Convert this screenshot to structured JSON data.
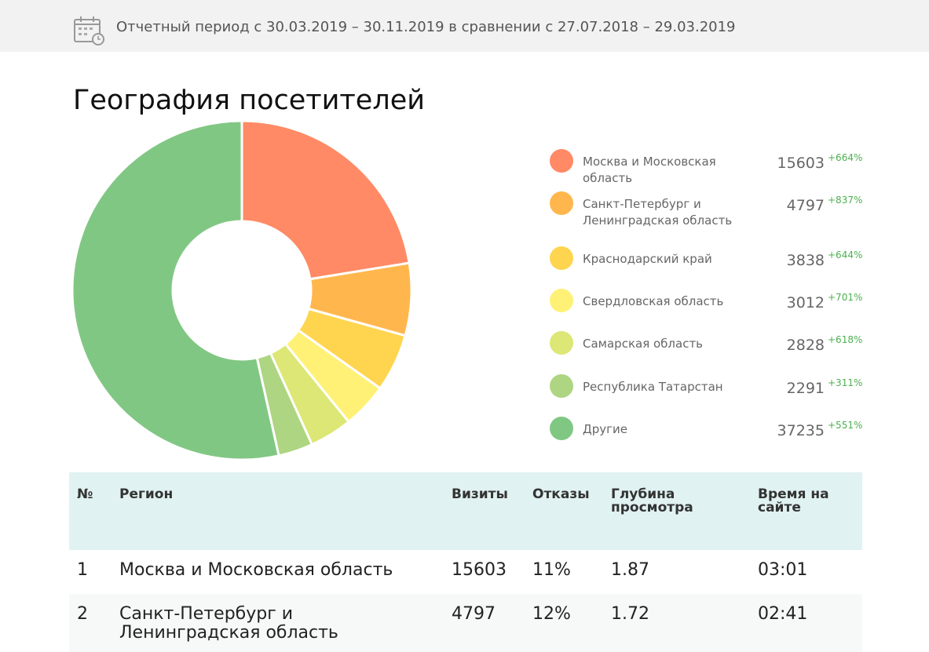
{
  "header": {
    "period": "Отчетный период с 30.03.2019 – 30.11.2019 в сравнении с 27.07.2018 – 29.03.2019"
  },
  "title": "География посетителей",
  "chart_data": {
    "type": "pie",
    "subtype": "donut",
    "title": "География посетителей",
    "categories": [
      "Москва и Московская область",
      "Санкт-Петербург и Ленинградская область",
      "Краснодарский край",
      "Свердловская область",
      "Самарская область",
      "Республика Татарстан",
      "Другие"
    ],
    "values": [
      15603,
      4797,
      3838,
      3012,
      2828,
      2291,
      37235
    ],
    "changes": [
      "+664%",
      "+837%",
      "+644%",
      "+701%",
      "+618%",
      "+311%",
      "+551%"
    ],
    "colors": [
      "#ff8a65",
      "#ffb74d",
      "#ffd54f",
      "#fff176",
      "#dce775",
      "#aed581",
      "#81c784"
    ],
    "legend": "right"
  },
  "table": {
    "headers": [
      "№",
      "Регион",
      "Визиты",
      "Отказы",
      "Глубина просмотра",
      "Время на сайте"
    ],
    "rows": [
      [
        "1",
        "Москва и Московская область",
        "15603",
        "11%",
        "1.87",
        "03:01"
      ],
      [
        "2",
        "Санкт-Петербург и Ленинградская область",
        "4797",
        "12%",
        "1.72",
        "02:41"
      ]
    ]
  }
}
